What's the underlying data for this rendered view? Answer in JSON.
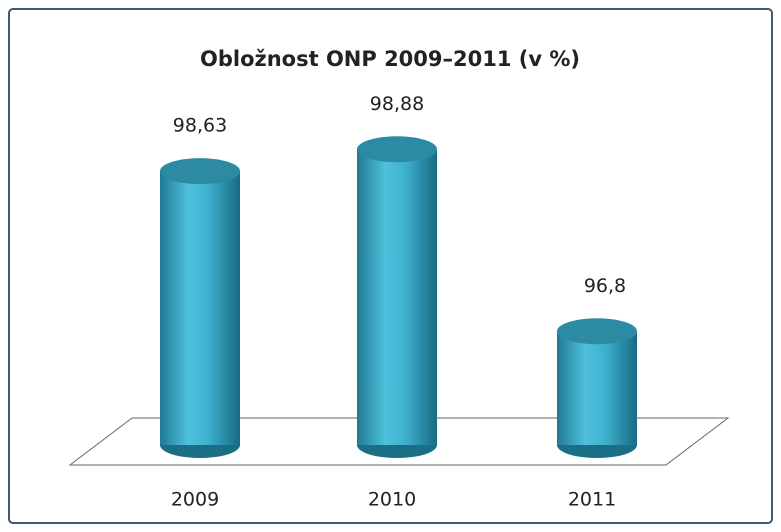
{
  "chart_data": {
    "type": "bar",
    "title": "Obložnost ONP 2009–2011 (v %)",
    "categories": [
      "2009",
      "2010",
      "2011"
    ],
    "values": [
      98.63,
      98.88,
      96.8
    ],
    "value_labels": [
      "98,63",
      "98,88",
      "96,8"
    ],
    "color": "#3fb0cf",
    "ylim": [
      95.5,
      99.5
    ]
  }
}
